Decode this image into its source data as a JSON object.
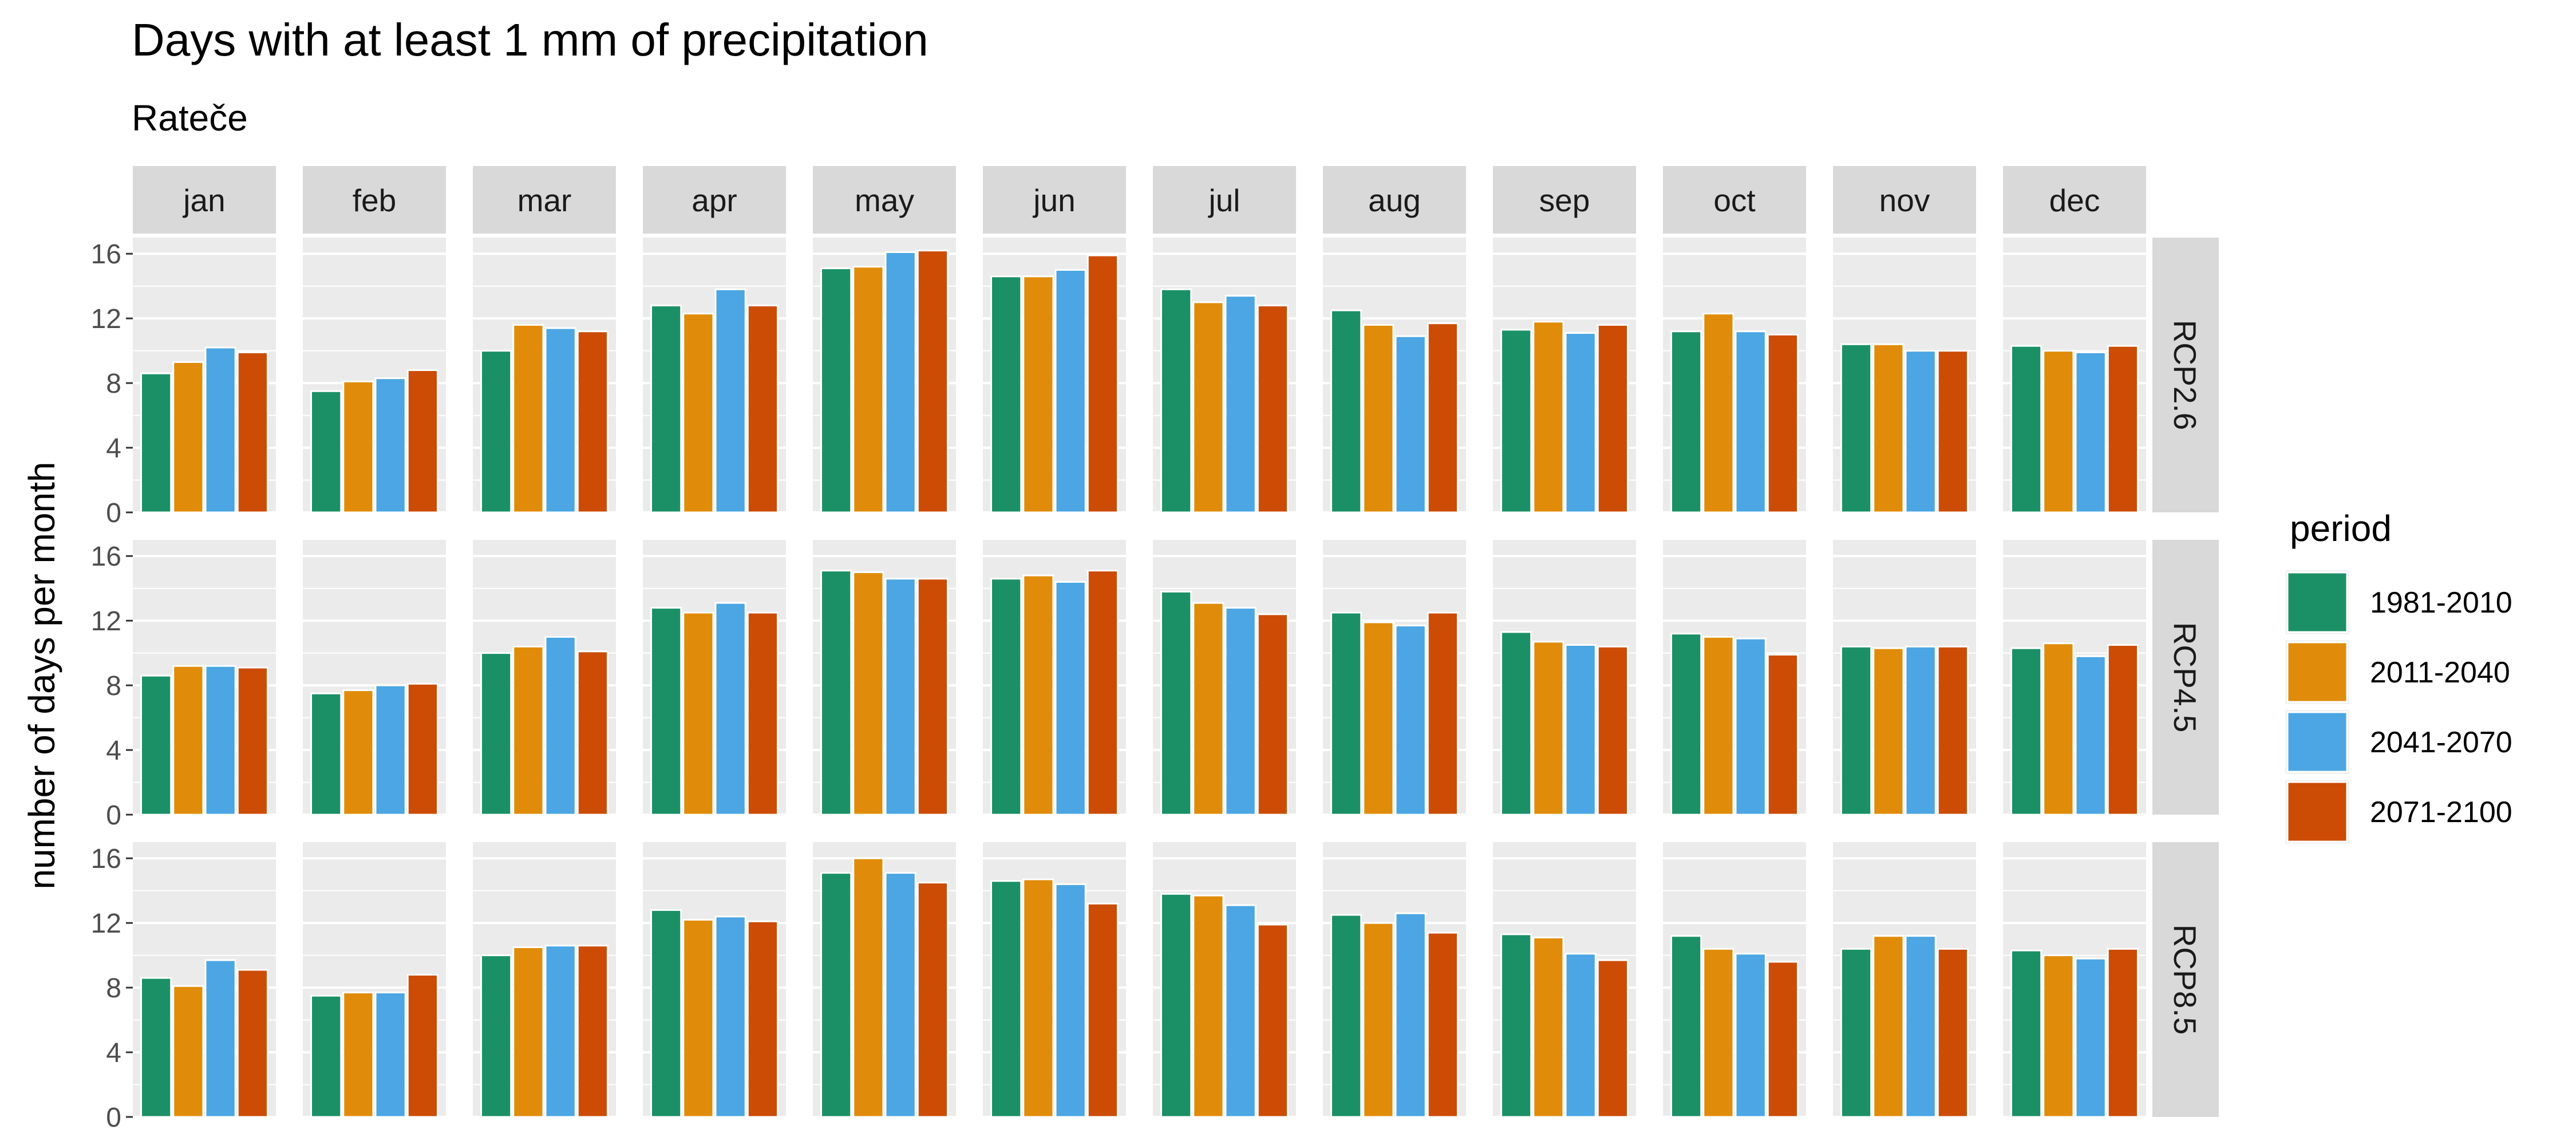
{
  "chart_data": {
    "type": "bar",
    "title": "Days with at least 1 mm of precipitation",
    "subtitle": "Rateče",
    "xlabel": "",
    "ylabel": "number of days per month",
    "ylim": [
      0,
      17
    ],
    "yticks": [
      0,
      4,
      8,
      12,
      16
    ],
    "grid": true,
    "legend": {
      "title": "period",
      "position": "right"
    },
    "categories": [
      "jan",
      "feb",
      "mar",
      "apr",
      "may",
      "jun",
      "jul",
      "aug",
      "sep",
      "oct",
      "nov",
      "dec"
    ],
    "series": [
      {
        "name": "1981-2010",
        "color": "#1b9066"
      },
      {
        "name": "2011-2040",
        "color": "#e08c0a"
      },
      {
        "name": "2041-2070",
        "color": "#4ba6e3"
      },
      {
        "name": "2071-2100",
        "color": "#cc4c06"
      }
    ],
    "facets": [
      {
        "label": "RCP2.6",
        "values": [
          [
            8.6,
            9.3,
            10.2,
            9.9
          ],
          [
            7.5,
            8.1,
            8.3,
            8.8
          ],
          [
            10.0,
            11.6,
            11.4,
            11.2
          ],
          [
            12.8,
            12.3,
            13.8,
            12.8
          ],
          [
            15.1,
            15.2,
            16.1,
            16.2
          ],
          [
            14.6,
            14.6,
            15.0,
            15.9
          ],
          [
            13.8,
            13.0,
            13.4,
            12.8
          ],
          [
            12.5,
            11.6,
            10.9,
            11.7
          ],
          [
            11.3,
            11.8,
            11.1,
            11.6
          ],
          [
            11.2,
            12.3,
            11.2,
            11.0
          ],
          [
            10.4,
            10.4,
            10.0,
            10.0
          ],
          [
            10.3,
            10.0,
            9.9,
            10.3
          ]
        ]
      },
      {
        "label": "RCP4.5",
        "values": [
          [
            8.6,
            9.2,
            9.2,
            9.1
          ],
          [
            7.5,
            7.7,
            8.0,
            8.1
          ],
          [
            10.0,
            10.4,
            11.0,
            10.1
          ],
          [
            12.8,
            12.5,
            13.1,
            12.5
          ],
          [
            15.1,
            15.0,
            14.6,
            14.6
          ],
          [
            14.6,
            14.8,
            14.4,
            15.1
          ],
          [
            13.8,
            13.1,
            12.8,
            12.4
          ],
          [
            12.5,
            11.9,
            11.7,
            12.5
          ],
          [
            11.3,
            10.7,
            10.5,
            10.4
          ],
          [
            11.2,
            11.0,
            10.9,
            9.9
          ],
          [
            10.4,
            10.3,
            10.4,
            10.4
          ],
          [
            10.3,
            10.6,
            9.8,
            10.5
          ]
        ]
      },
      {
        "label": "RCP8.5",
        "values": [
          [
            8.6,
            8.1,
            9.7,
            9.1
          ],
          [
            7.5,
            7.7,
            7.7,
            8.8
          ],
          [
            10.0,
            10.5,
            10.6,
            10.6
          ],
          [
            12.8,
            12.2,
            12.4,
            12.1
          ],
          [
            15.1,
            16.0,
            15.1,
            14.5
          ],
          [
            14.6,
            14.7,
            14.4,
            13.2
          ],
          [
            13.8,
            13.7,
            13.1,
            11.9
          ],
          [
            12.5,
            12.0,
            12.6,
            11.4
          ],
          [
            11.3,
            11.1,
            10.1,
            9.7
          ],
          [
            11.2,
            10.4,
            10.1,
            9.6
          ],
          [
            10.4,
            11.2,
            11.2,
            10.4
          ],
          [
            10.3,
            10.0,
            9.8,
            10.4
          ]
        ]
      }
    ]
  }
}
